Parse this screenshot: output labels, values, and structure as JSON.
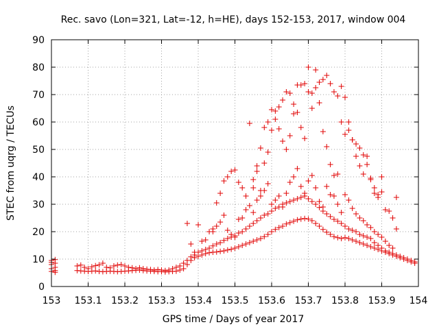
{
  "chart_data": {
    "type": "scatter",
    "title": "Rec. savo (Lon=321, Lat=-12, h=HE), days 152-153, 2017, window 004",
    "xlabel": "GPS time / Days of year 2017",
    "ylabel": "STEC from uqrg / TECUs",
    "xlim": [
      153,
      154
    ],
    "ylim": [
      0,
      90
    ],
    "xticks": [
      "153",
      "153.1",
      "153.2",
      "153.3",
      "153.4",
      "153.5",
      "153.6",
      "153.7",
      "153.8",
      "153.9",
      "154"
    ],
    "yticks": [
      "0",
      "10",
      "20",
      "30",
      "40",
      "50",
      "60",
      "70",
      "80",
      "90"
    ],
    "grid": true,
    "marker": "plus",
    "color": "#e00000",
    "series": [
      {
        "x": [
          153.0,
          153.01,
          153.0,
          153.01,
          153.0,
          153.01,
          153.0,
          153.01,
          153.0,
          153.01,
          153.07,
          153.08,
          153.09,
          153.1,
          153.11,
          153.12,
          153.13,
          153.14,
          153.15,
          153.16,
          153.17,
          153.18,
          153.19,
          153.2,
          153.21,
          153.22,
          153.23,
          153.24,
          153.25,
          153.26,
          153.27,
          153.28,
          153.29,
          153.3,
          153.31,
          153.32,
          153.33,
          153.34,
          153.35,
          153.36,
          153.37,
          153.38,
          153.39,
          153.4,
          153.41,
          153.42,
          153.43,
          153.44,
          153.45,
          153.46,
          153.47,
          153.48,
          153.49,
          153.5,
          153.51,
          153.52,
          153.53,
          153.54,
          153.55,
          153.56,
          153.57,
          153.58,
          153.59,
          153.6,
          153.61,
          153.62,
          153.63,
          153.64,
          153.65,
          153.66,
          153.67,
          153.68,
          153.69,
          153.7,
          153.71,
          153.72,
          153.73,
          153.74,
          153.75,
          153.76,
          153.77,
          153.78,
          153.79,
          153.8,
          153.81,
          153.82,
          153.83,
          153.84,
          153.85,
          153.86,
          153.87,
          153.88,
          153.89,
          153.9,
          153.91,
          153.92,
          153.93,
          153.94,
          153.95,
          153.96,
          153.97,
          153.98,
          153.99
        ],
        "y": [
          5.5,
          5.8,
          6.5,
          7.0,
          8.0,
          8.5,
          9.5,
          9.8,
          8.8,
          5.2,
          5.8,
          5.7,
          5.6,
          5.5,
          5.6,
          5.7,
          5.5,
          5.4,
          5.5,
          5.6,
          5.5,
          5.4,
          5.5,
          5.6,
          5.7,
          5.8,
          5.9,
          6.0,
          5.8,
          5.7,
          5.6,
          5.5,
          5.4,
          5.4,
          5.3,
          5.4,
          5.5,
          5.6,
          6.0,
          6.5,
          8.0,
          9.5,
          10.5,
          11.0,
          11.5,
          12.0,
          12.3,
          12.5,
          12.6,
          12.8,
          13.0,
          13.3,
          13.6,
          14.0,
          14.5,
          15.0,
          15.5,
          16.0,
          16.5,
          17.0,
          17.5,
          18.2,
          19.0,
          20.0,
          20.8,
          21.5,
          22.0,
          22.8,
          23.3,
          23.8,
          24.3,
          24.6,
          24.8,
          24.6,
          24.0,
          23.0,
          22.0,
          20.8,
          19.8,
          19.0,
          18.2,
          17.8,
          17.5,
          17.8,
          17.5,
          17.0,
          16.5,
          16.0,
          15.5,
          15.0,
          14.5,
          14.0,
          13.5,
          13.0,
          12.5,
          12.0,
          11.5,
          11.0,
          10.5,
          10.0,
          9.5,
          9.0,
          8.5
        ]
      },
      {
        "x": [
          153.07,
          153.08,
          153.09,
          153.1,
          153.11,
          153.12,
          153.13,
          153.14,
          153.15,
          153.16,
          153.17,
          153.18,
          153.19,
          153.2,
          153.21,
          153.22,
          153.23,
          153.24,
          153.25,
          153.26,
          153.27,
          153.28,
          153.29,
          153.3,
          153.31,
          153.32,
          153.33,
          153.34,
          153.35,
          153.36,
          153.37,
          153.38,
          153.39,
          153.4,
          153.41,
          153.42,
          153.43,
          153.44,
          153.45,
          153.46,
          153.47,
          153.48,
          153.49,
          153.5,
          153.51,
          153.52,
          153.53,
          153.54,
          153.55,
          153.56,
          153.57,
          153.58,
          153.59,
          153.6,
          153.61,
          153.62,
          153.63,
          153.64,
          153.65,
          153.66,
          153.67,
          153.68,
          153.69,
          153.7,
          153.71,
          153.72,
          153.73,
          153.74,
          153.75,
          153.76,
          153.77,
          153.78,
          153.79,
          153.8,
          153.81,
          153.82,
          153.83,
          153.84,
          153.85,
          153.86,
          153.87,
          153.88,
          153.89,
          153.9,
          153.91,
          153.92,
          153.93,
          153.94,
          153.95,
          153.96,
          153.97,
          153.98,
          153.99
        ],
        "y": [
          7.5,
          7.8,
          7.0,
          6.5,
          7.2,
          7.6,
          7.9,
          8.5,
          7.0,
          6.8,
          7.5,
          7.8,
          8.0,
          7.5,
          7.0,
          6.8,
          6.5,
          6.8,
          6.5,
          6.3,
          6.2,
          6.0,
          6.2,
          6.0,
          5.8,
          6.0,
          6.5,
          7.0,
          7.5,
          8.5,
          9.5,
          10.8,
          11.5,
          12.5,
          13.0,
          13.5,
          14.0,
          14.8,
          15.5,
          16.0,
          16.8,
          17.5,
          18.0,
          18.5,
          19.5,
          20.0,
          21.0,
          22.0,
          23.0,
          24.0,
          25.0,
          26.0,
          26.5,
          27.5,
          28.5,
          29.0,
          30.0,
          30.5,
          31.0,
          31.5,
          32.0,
          32.5,
          33.0,
          32.0,
          31.0,
          30.0,
          28.8,
          27.5,
          26.5,
          25.5,
          24.5,
          23.8,
          23.0,
          22.0,
          21.0,
          20.5,
          20.0,
          19.0,
          18.5,
          18.0,
          17.5,
          16.0,
          15.0,
          14.0,
          13.0,
          12.5,
          12.0,
          11.5,
          11.0,
          10.5,
          10.0,
          9.5,
          9.0
        ]
      },
      {
        "x": [
          153.37,
          153.38,
          153.39,
          153.4,
          153.41,
          153.42,
          153.43,
          153.44,
          153.45,
          153.46,
          153.47,
          153.48,
          153.49,
          153.5,
          153.51,
          153.52,
          153.53,
          153.54,
          153.55,
          153.56,
          153.57,
          153.58,
          153.59,
          153.6,
          153.61,
          153.62,
          153.63,
          153.64,
          153.65,
          153.66,
          153.67,
          153.68,
          153.69,
          153.7,
          153.71,
          153.72,
          153.73,
          153.74,
          153.75,
          153.76,
          153.77,
          153.78,
          153.79,
          153.8,
          153.81,
          153.82,
          153.83,
          153.84,
          153.85,
          153.86,
          153.87,
          153.88,
          153.89,
          153.9,
          153.91,
          153.92,
          153.93,
          153.94
        ],
        "y": [
          23.0,
          15.5,
          12.5,
          22.5,
          16.5,
          17.0,
          20.0,
          21.0,
          22.0,
          23.5,
          26.0,
          20.5,
          19.0,
          18.0,
          24.5,
          25.0,
          28.0,
          29.5,
          27.0,
          31.5,
          33.0,
          35.0,
          37.5,
          30.0,
          31.5,
          33.0,
          29.0,
          34.0,
          38.0,
          40.0,
          43.0,
          36.5,
          34.0,
          38.5,
          40.5,
          36.0,
          31.0,
          29.0,
          36.5,
          33.5,
          33.0,
          30.0,
          27.0,
          33.5,
          31.5,
          28.5,
          26.5,
          25.0,
          24.0,
          22.5,
          21.5,
          20.0,
          19.0,
          18.0,
          16.5,
          15.0,
          14.0,
          21.0
        ]
      },
      {
        "x": [
          153.44,
          153.45,
          153.46,
          153.47,
          153.48,
          153.49,
          153.5,
          153.51,
          153.52,
          153.53,
          153.54,
          153.55,
          153.56,
          153.57,
          153.58,
          153.59,
          153.6,
          153.61,
          153.62,
          153.63,
          153.64,
          153.65,
          153.66,
          153.67,
          153.68,
          153.69,
          153.7,
          153.71,
          153.72,
          153.73,
          153.74,
          153.75,
          153.76,
          153.77,
          153.78,
          153.79,
          153.8,
          153.81,
          153.82,
          153.83,
          153.84,
          153.85,
          153.86,
          153.87,
          153.88,
          153.89,
          153.9,
          153.91,
          153.92,
          153.93,
          153.94
        ],
        "y": [
          20.0,
          30.5,
          34.0,
          38.5,
          40.0,
          42.0,
          42.5,
          38.0,
          36.0,
          33.0,
          59.5,
          39.0,
          44.0,
          50.5,
          58.0,
          60.0,
          64.5,
          64.0,
          65.5,
          68.0,
          71.0,
          70.5,
          66.5,
          73.5,
          73.5,
          74.0,
          71.0,
          70.5,
          72.5,
          74.5,
          75.5,
          77.0,
          74.0,
          71.0,
          69.5,
          60.0,
          55.5,
          57.0,
          53.5,
          52.0,
          50.5,
          48.0,
          47.5,
          39.5,
          34.0,
          33.5,
          40.0,
          28.0,
          27.5,
          25.0,
          32.5
        ]
      },
      {
        "x": [
          153.55,
          153.56,
          153.57,
          153.58,
          153.59,
          153.6,
          153.61,
          153.62,
          153.63,
          153.64,
          153.65,
          153.66,
          153.67,
          153.68,
          153.69,
          153.7,
          153.71,
          153.72,
          153.73,
          153.74,
          153.75,
          153.76,
          153.77,
          153.78,
          153.79,
          153.8,
          153.81,
          153.82,
          153.83,
          153.84,
          153.85,
          153.86,
          153.87,
          153.88,
          153.89,
          153.9
        ],
        "y": [
          36.0,
          42.0,
          35.0,
          45.0,
          49.0,
          57.0,
          61.0,
          57.5,
          53.0,
          50.0,
          55.0,
          63.0,
          63.5,
          58.0,
          54.0,
          80.0,
          65.0,
          79.0,
          67.0,
          56.5,
          51.0,
          44.5,
          40.5,
          41.0,
          73.0,
          69.0,
          60.0,
          53.5,
          47.5,
          44.0,
          41.0,
          44.5,
          39.0,
          36.0,
          32.5,
          34.5
        ]
      }
    ]
  }
}
